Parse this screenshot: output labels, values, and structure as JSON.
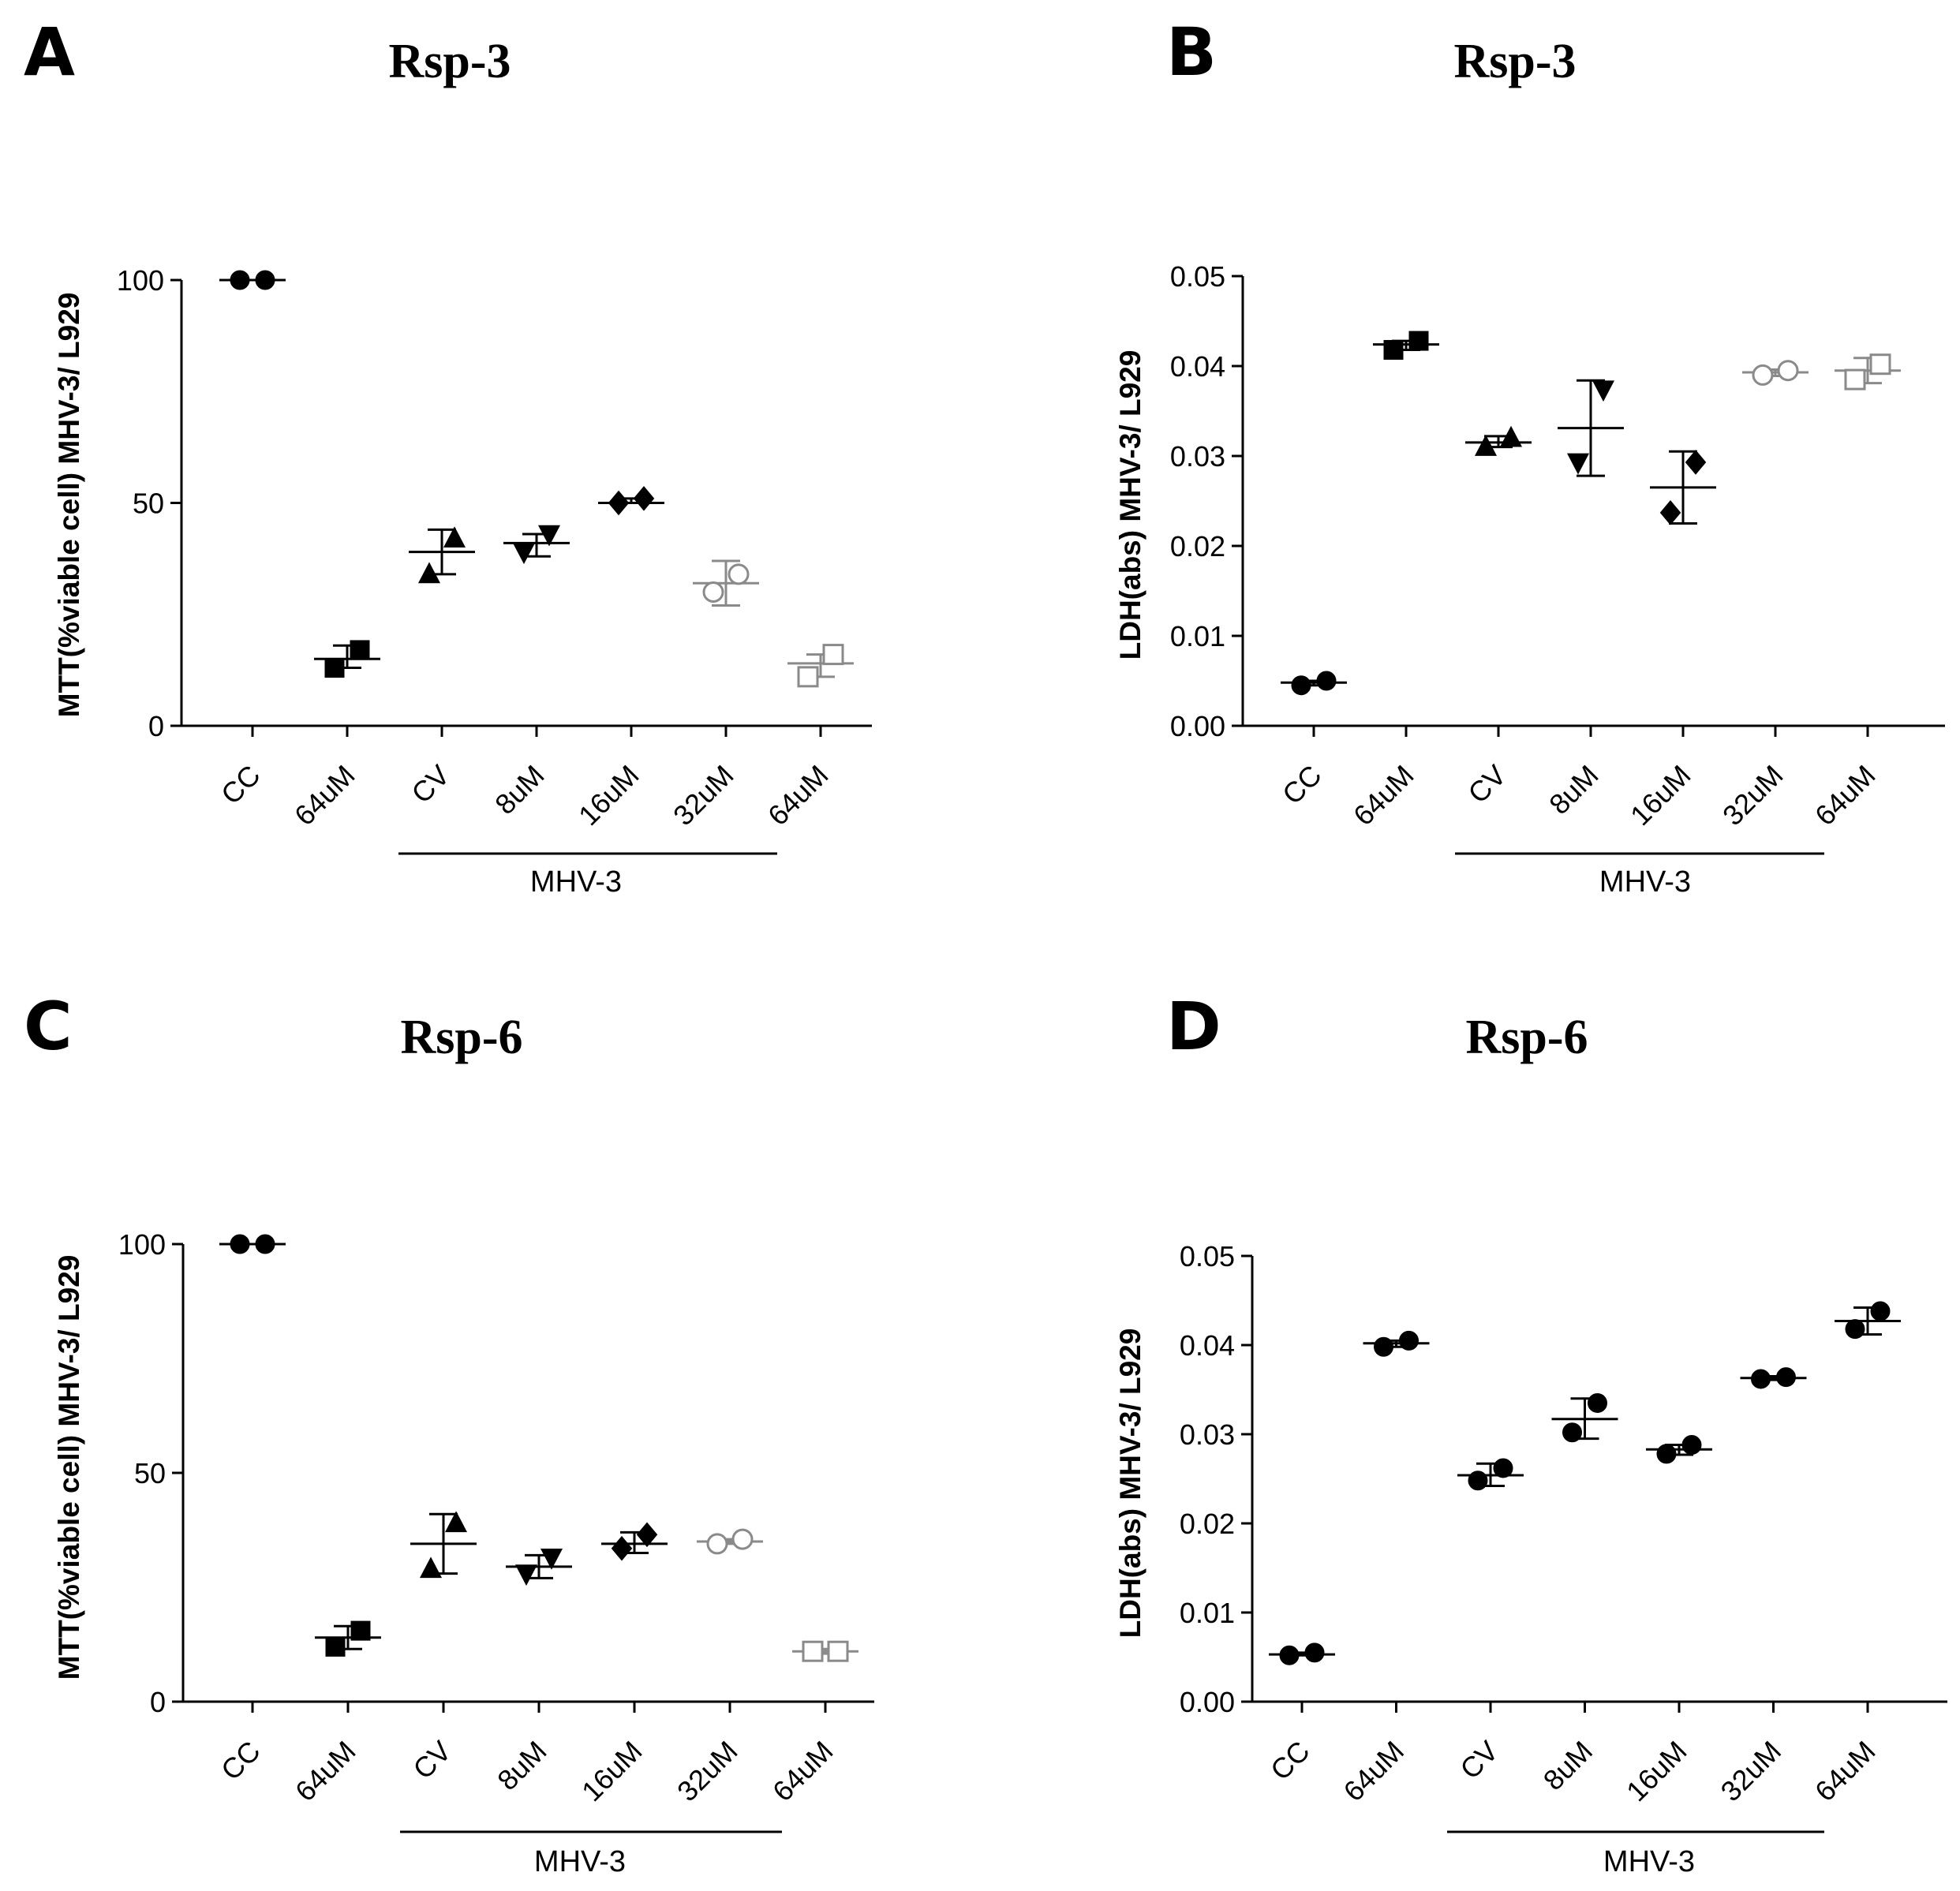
{
  "chart_data": [
    {
      "panel": "A",
      "type": "scatter",
      "title": "Rsp-3",
      "ylabel": "MTT(%viable cell) MHV-3/ L929",
      "xlabel": "",
      "ylim": [
        0,
        100
      ],
      "yticks": [
        "0",
        "50",
        "100"
      ],
      "ytick_values": [
        0,
        50,
        100
      ],
      "categories": [
        "CC",
        "64uM",
        "CV",
        "8uM",
        "16uM",
        "32uM",
        "64uM"
      ],
      "group": {
        "label": "MHV-3",
        "from": 2,
        "to": 6
      },
      "series": [
        {
          "name": "CC",
          "marker": "circle",
          "filled": true,
          "color": "#000000",
          "values": [
            100,
            100
          ],
          "mean": 100,
          "err": [
            100,
            100
          ]
        },
        {
          "name": "64uM",
          "marker": "square",
          "filled": true,
          "color": "#000000",
          "values": [
            13,
            17
          ],
          "mean": 15,
          "err": [
            13,
            18
          ]
        },
        {
          "name": "CV",
          "marker": "triangle-up",
          "filled": true,
          "color": "#000000",
          "values": [
            34,
            42
          ],
          "mean": 39,
          "err": [
            34,
            44
          ]
        },
        {
          "name": "8uM",
          "marker": "triangle-down",
          "filled": true,
          "color": "#000000",
          "values": [
            39,
            43
          ],
          "mean": 41,
          "err": [
            38,
            43
          ]
        },
        {
          "name": "16uM",
          "marker": "diamond",
          "filled": true,
          "color": "#000000",
          "values": [
            50,
            51
          ],
          "mean": 50,
          "err": [
            50,
            51
          ]
        },
        {
          "name": "32uM",
          "marker": "circle",
          "filled": false,
          "color": "#8a8a8a",
          "values": [
            30,
            34
          ],
          "mean": 32,
          "err": [
            27,
            37
          ]
        },
        {
          "name": "64uM",
          "marker": "square",
          "filled": false,
          "color": "#8a8a8a",
          "values": [
            11,
            16
          ],
          "mean": 14,
          "err": [
            11,
            16
          ]
        }
      ]
    },
    {
      "panel": "B",
      "type": "scatter",
      "title": "Rsp-3",
      "ylabel": "LDH(abs) MHV-3/ L929",
      "xlabel": "",
      "ylim": [
        0,
        0.05
      ],
      "yticks": [
        "0.00",
        "0.01",
        "0.02",
        "0.03",
        "0.04",
        "0.05"
      ],
      "ytick_values": [
        0,
        0.01,
        0.02,
        0.03,
        0.04,
        0.05
      ],
      "categories": [
        "CC",
        "64uM",
        "CV",
        "8uM",
        "16uM",
        "32uM",
        "64uM"
      ],
      "group": {
        "label": "MHV-3",
        "from": 2,
        "to": 6
      },
      "series": [
        {
          "name": "CC",
          "marker": "circle",
          "filled": true,
          "color": "#000000",
          "values": [
            0.0045,
            0.005
          ],
          "mean": 0.0048,
          "err": [
            0.0045,
            0.005
          ]
        },
        {
          "name": "64uM",
          "marker": "square",
          "filled": true,
          "color": "#000000",
          "values": [
            0.0418,
            0.0428
          ],
          "mean": 0.0424,
          "err": [
            0.0418,
            0.0428
          ]
        },
        {
          "name": "CV",
          "marker": "triangle-up",
          "filled": true,
          "color": "#000000",
          "values": [
            0.031,
            0.032
          ],
          "mean": 0.0315,
          "err": [
            0.031,
            0.0322
          ]
        },
        {
          "name": "8uM",
          "marker": "triangle-down",
          "filled": true,
          "color": "#000000",
          "values": [
            0.0293,
            0.0374
          ],
          "mean": 0.0331,
          "err": [
            0.0278,
            0.0384
          ]
        },
        {
          "name": "16uM",
          "marker": "diamond",
          "filled": true,
          "color": "#000000",
          "values": [
            0.0237,
            0.0293
          ],
          "mean": 0.0265,
          "err": [
            0.0225,
            0.0305
          ]
        },
        {
          "name": "32uM",
          "marker": "circle",
          "filled": false,
          "color": "#8a8a8a",
          "values": [
            0.039,
            0.0395
          ],
          "mean": 0.0393,
          "err": [
            0.0389,
            0.0396
          ]
        },
        {
          "name": "64uM",
          "marker": "square",
          "filled": false,
          "color": "#8a8a8a",
          "values": [
            0.0385,
            0.0402
          ],
          "mean": 0.0395,
          "err": [
            0.0381,
            0.0409
          ]
        }
      ]
    },
    {
      "panel": "C",
      "type": "scatter",
      "title": "Rsp-6",
      "ylabel": "MTT(%viable cell) MHV-3/ L929",
      "xlabel": "",
      "ylim": [
        0,
        100
      ],
      "yticks": [
        "0",
        "50",
        "100"
      ],
      "ytick_values": [
        0,
        50,
        100
      ],
      "categories": [
        "CC",
        "64uM",
        "CV",
        "8uM",
        "16uM",
        "32uM",
        "64uM"
      ],
      "group": {
        "label": "MHV-3",
        "from": 2,
        "to": 6
      },
      "series": [
        {
          "name": "CC",
          "marker": "circle",
          "filled": true,
          "color": "#000000",
          "values": [
            100,
            100
          ],
          "mean": 100,
          "err": [
            100,
            100
          ]
        },
        {
          "name": "64uM",
          "marker": "square",
          "filled": true,
          "color": "#000000",
          "values": [
            12,
            15.5
          ],
          "mean": 14,
          "err": [
            11.5,
            16.5
          ]
        },
        {
          "name": "CV",
          "marker": "triangle-up",
          "filled": true,
          "color": "#000000",
          "values": [
            29,
            39
          ],
          "mean": 34.5,
          "err": [
            28,
            41
          ]
        },
        {
          "name": "8uM",
          "marker": "triangle-down",
          "filled": true,
          "color": "#000000",
          "values": [
            28,
            31.5
          ],
          "mean": 29.5,
          "err": [
            27,
            32
          ]
        },
        {
          "name": "16uM",
          "marker": "diamond",
          "filled": true,
          "color": "#000000",
          "values": [
            33.5,
            36.5
          ],
          "mean": 34.5,
          "err": [
            32.5,
            37
          ]
        },
        {
          "name": "32uM",
          "marker": "circle",
          "filled": false,
          "color": "#8a8a8a",
          "values": [
            34.5,
            35.5
          ],
          "mean": 35,
          "err": [
            34.5,
            35.5
          ]
        },
        {
          "name": "64uM",
          "marker": "square",
          "filled": false,
          "color": "#8a8a8a",
          "values": [
            11,
            11
          ],
          "mean": 11,
          "err": [
            10.5,
            11.5
          ]
        }
      ]
    },
    {
      "panel": "D",
      "type": "scatter",
      "title": "Rsp-6",
      "ylabel": "LDH(abs) MHV-3/ L929",
      "xlabel": "",
      "ylim": [
        0,
        0.05
      ],
      "yticks": [
        "0.00",
        "0.01",
        "0.02",
        "0.03",
        "0.04",
        "0.05"
      ],
      "ytick_values": [
        0,
        0.01,
        0.02,
        0.03,
        0.04,
        0.05
      ],
      "categories": [
        "CC",
        "64uM",
        "CV",
        "8uM",
        "16uM",
        "32uM",
        "64uM"
      ],
      "group": {
        "label": "MHV-3",
        "from": 2,
        "to": 6
      },
      "series": [
        {
          "name": "CC",
          "marker": "circle",
          "filled": true,
          "color": "#000000",
          "values": [
            0.0052,
            0.0055
          ],
          "mean": 0.0053,
          "err": [
            0.0052,
            0.0055
          ]
        },
        {
          "name": "64uM",
          "marker": "circle",
          "filled": true,
          "color": "#000000",
          "values": [
            0.0398,
            0.0405
          ],
          "mean": 0.0402,
          "err": [
            0.0398,
            0.0405
          ]
        },
        {
          "name": "CV",
          "marker": "circle",
          "filled": true,
          "color": "#000000",
          "values": [
            0.0248,
            0.0262
          ],
          "mean": 0.0254,
          "err": [
            0.0242,
            0.0267
          ]
        },
        {
          "name": "8uM",
          "marker": "circle",
          "filled": true,
          "color": "#000000",
          "values": [
            0.0302,
            0.0335
          ],
          "mean": 0.0317,
          "err": [
            0.0295,
            0.034
          ]
        },
        {
          "name": "16uM",
          "marker": "circle",
          "filled": true,
          "color": "#000000",
          "values": [
            0.0278,
            0.0288
          ],
          "mean": 0.0283,
          "err": [
            0.0277,
            0.0288
          ]
        },
        {
          "name": "32uM",
          "marker": "circle",
          "filled": true,
          "color": "#000000",
          "values": [
            0.0362,
            0.0364
          ],
          "mean": 0.0363,
          "err": [
            0.0361,
            0.0365
          ]
        },
        {
          "name": "64uM",
          "marker": "circle",
          "filled": true,
          "color": "#000000",
          "values": [
            0.0418,
            0.0438
          ],
          "mean": 0.0427,
          "err": [
            0.0412,
            0.0442
          ]
        }
      ]
    }
  ]
}
